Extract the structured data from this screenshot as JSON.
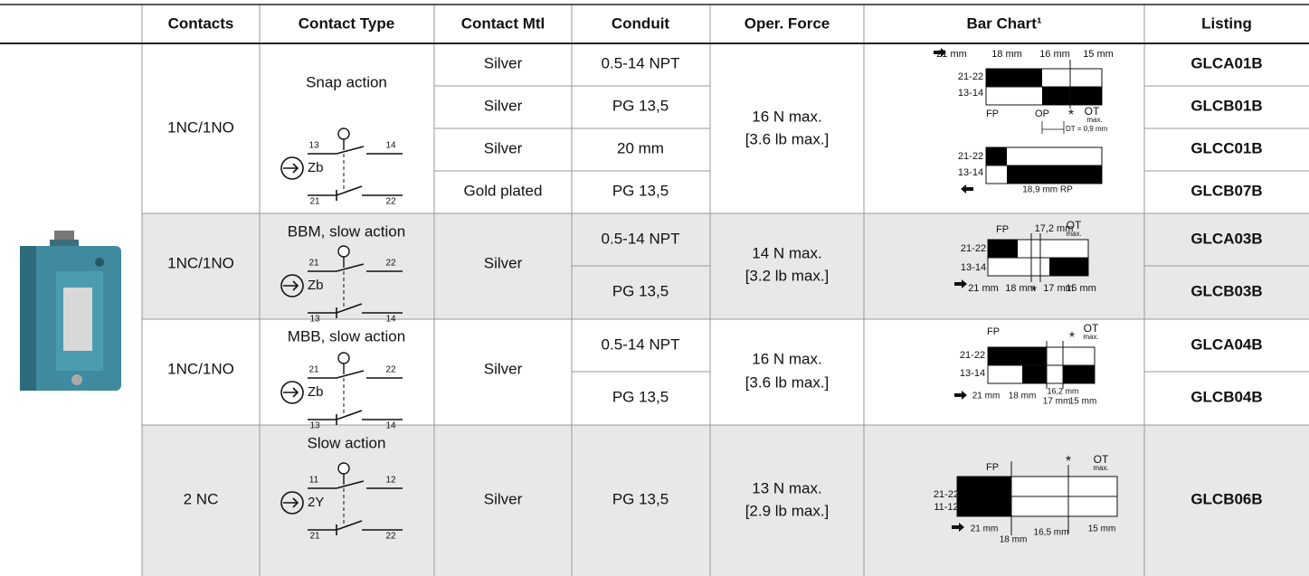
{
  "header": {
    "columns": [
      "Contacts",
      "Contact Type",
      "Contact Mtl",
      "Conduit",
      "Oper. Force",
      "Bar Chart¹",
      "Listing"
    ]
  },
  "groups": [
    {
      "contacts": "1NC/1NO",
      "contact_type": "Snap action",
      "diagram": [
        "13",
        "14",
        "Zb",
        "21",
        "22"
      ],
      "rows": [
        {
          "material": "Silver",
          "conduit": "0.5-14 NPT",
          "listing": "GLCA01B"
        },
        {
          "material": "Silver",
          "conduit": "PG 13,5",
          "listing": "GLCB01B"
        },
        {
          "material": "Silver",
          "conduit": "20 mm",
          "listing": "GLCC01B"
        },
        {
          "material": "Gold plated",
          "conduit": "PG 13,5",
          "listing": "GLCB07B"
        }
      ],
      "force": [
        "16 N max.",
        "[3.6 lb max.]"
      ],
      "bar_chart": [
        "21 mm",
        "18 mm",
        "16 mm",
        "15 mm",
        "21-22",
        "13-14",
        "FP",
        "OP",
        "*",
        "OT",
        "max.",
        "DT = 0,9 mm",
        "21-22",
        "13-14",
        "18,9 mm RP"
      ]
    },
    {
      "contacts": "1NC/1NO",
      "contact_type": "BBM, slow action",
      "diagram": [
        "21",
        "22",
        "Zb",
        "13",
        "14"
      ],
      "material": "Silver",
      "rows": [
        {
          "conduit": "0.5-14 NPT",
          "listing": "GLCA03B"
        },
        {
          "conduit": "PG 13,5",
          "listing": "GLCB03B"
        }
      ],
      "force": [
        "14 N max.",
        "[3.2 lb max.]"
      ],
      "bar_chart": [
        "FP",
        "17,2 mm",
        "OT",
        "max.",
        "21-22",
        "13-14",
        "21 mm",
        "18 mm",
        "*",
        "17 mm",
        "15 mm"
      ]
    },
    {
      "contacts": "1NC/1NO",
      "contact_type": "MBB, slow action",
      "diagram": [
        "21",
        "22",
        "Zb",
        "13",
        "14"
      ],
      "material": "Silver",
      "rows": [
        {
          "conduit": "0.5-14 NPT",
          "listing": "GLCA04B"
        },
        {
          "conduit": "PG 13,5",
          "listing": "GLCB04B"
        }
      ],
      "force": [
        "16 N max.",
        "[3.6 lb max.]"
      ],
      "bar_chart": [
        "FP",
        "*",
        "OT",
        "max.",
        "21-22",
        "13-14",
        "21 mm",
        "18 mm",
        "16,2 mm",
        "17 mm",
        "15 mm"
      ]
    },
    {
      "contacts": "2 NC",
      "contact_type": "Slow action",
      "diagram": [
        "11",
        "12",
        "2Y",
        "21",
        "22"
      ],
      "material": "Silver",
      "rows": [
        {
          "conduit": "PG 13,5",
          "listing": "GLCB06B"
        }
      ],
      "force": [
        "13 N max.",
        "[2.9 lb max.]"
      ],
      "bar_chart": [
        "FP",
        "*",
        "OT",
        "max.",
        "21-22",
        "11-12",
        "21 mm",
        "18 mm",
        "16,5 mm",
        "15 mm"
      ]
    }
  ]
}
